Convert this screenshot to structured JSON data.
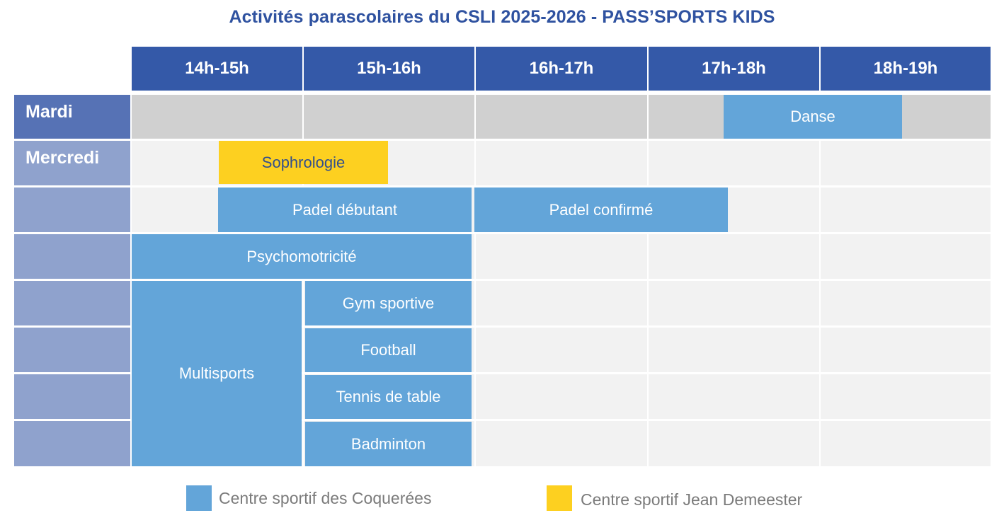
{
  "title": "Activités parascolaires du CSLI 2025-2026 - PASS’SPORTS KIDS",
  "time_slots": [
    "14h-15h",
    "15h-16h",
    "16h-17h",
    "17h-18h",
    "18h-19h"
  ],
  "days": [
    "Mardi",
    "Mercredi"
  ],
  "activities": {
    "danse": "Danse",
    "sophrologie": "Sophrologie",
    "padel_debutant": "Padel débutant",
    "padel_confirme": "Padel confirmé",
    "psychomotricite": "Psychomotricité",
    "multisports": "Multisports",
    "gym_sportive": "Gym sportive",
    "football": "Football",
    "tennis_de_table": "Tennis de table",
    "badminton": "Badminton"
  },
  "legend": [
    {
      "label": "Centre sportif des Coquerées",
      "color": "#63a5d9"
    },
    {
      "label": "Centre sportif Jean Demeester",
      "color": "#fdd020"
    }
  ],
  "colors": {
    "header": "#3459a8",
    "title": "#2f52a0",
    "mardi_label": "#5672b5",
    "mercredi_label": "#8fa2cd",
    "mardi_row": "#d0d0d0",
    "empty_cell": "#f2f2f2"
  }
}
